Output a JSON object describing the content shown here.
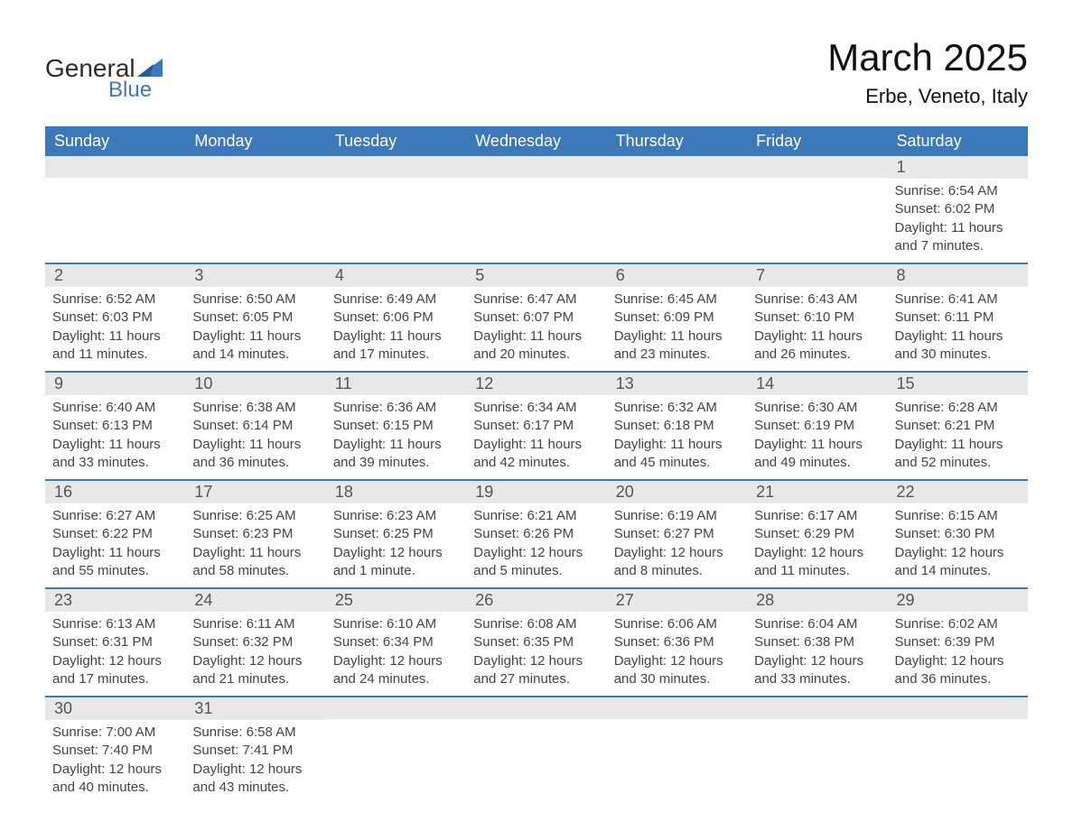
{
  "brand": {
    "word1": "General",
    "word2": "Blue"
  },
  "title": "March 2025",
  "location": "Erbe, Veneto, Italy",
  "colors": {
    "header_bg": "#3d78b8",
    "header_text": "#ffffff",
    "daynum_bg": "#e8e8e8",
    "daynum_text": "#555555",
    "body_text": "#444444",
    "row_divider": "#3d78b8",
    "page_bg": "#ffffff",
    "logo_gray": "#2c2c2c",
    "logo_blue": "#3d78b8"
  },
  "typography": {
    "title_fontsize": 42,
    "location_fontsize": 22,
    "weekday_fontsize": 18,
    "daynum_fontsize": 18,
    "body_fontsize": 15,
    "font_family": "Arial"
  },
  "weekdays": [
    "Sunday",
    "Monday",
    "Tuesday",
    "Wednesday",
    "Thursday",
    "Friday",
    "Saturday"
  ],
  "weeks": [
    [
      null,
      null,
      null,
      null,
      null,
      null,
      {
        "n": "1",
        "sunrise": "Sunrise: 6:54 AM",
        "sunset": "Sunset: 6:02 PM",
        "daylight": "Daylight: 11 hours and 7 minutes."
      }
    ],
    [
      {
        "n": "2",
        "sunrise": "Sunrise: 6:52 AM",
        "sunset": "Sunset: 6:03 PM",
        "daylight": "Daylight: 11 hours and 11 minutes."
      },
      {
        "n": "3",
        "sunrise": "Sunrise: 6:50 AM",
        "sunset": "Sunset: 6:05 PM",
        "daylight": "Daylight: 11 hours and 14 minutes."
      },
      {
        "n": "4",
        "sunrise": "Sunrise: 6:49 AM",
        "sunset": "Sunset: 6:06 PM",
        "daylight": "Daylight: 11 hours and 17 minutes."
      },
      {
        "n": "5",
        "sunrise": "Sunrise: 6:47 AM",
        "sunset": "Sunset: 6:07 PM",
        "daylight": "Daylight: 11 hours and 20 minutes."
      },
      {
        "n": "6",
        "sunrise": "Sunrise: 6:45 AM",
        "sunset": "Sunset: 6:09 PM",
        "daylight": "Daylight: 11 hours and 23 minutes."
      },
      {
        "n": "7",
        "sunrise": "Sunrise: 6:43 AM",
        "sunset": "Sunset: 6:10 PM",
        "daylight": "Daylight: 11 hours and 26 minutes."
      },
      {
        "n": "8",
        "sunrise": "Sunrise: 6:41 AM",
        "sunset": "Sunset: 6:11 PM",
        "daylight": "Daylight: 11 hours and 30 minutes."
      }
    ],
    [
      {
        "n": "9",
        "sunrise": "Sunrise: 6:40 AM",
        "sunset": "Sunset: 6:13 PM",
        "daylight": "Daylight: 11 hours and 33 minutes."
      },
      {
        "n": "10",
        "sunrise": "Sunrise: 6:38 AM",
        "sunset": "Sunset: 6:14 PM",
        "daylight": "Daylight: 11 hours and 36 minutes."
      },
      {
        "n": "11",
        "sunrise": "Sunrise: 6:36 AM",
        "sunset": "Sunset: 6:15 PM",
        "daylight": "Daylight: 11 hours and 39 minutes."
      },
      {
        "n": "12",
        "sunrise": "Sunrise: 6:34 AM",
        "sunset": "Sunset: 6:17 PM",
        "daylight": "Daylight: 11 hours and 42 minutes."
      },
      {
        "n": "13",
        "sunrise": "Sunrise: 6:32 AM",
        "sunset": "Sunset: 6:18 PM",
        "daylight": "Daylight: 11 hours and 45 minutes."
      },
      {
        "n": "14",
        "sunrise": "Sunrise: 6:30 AM",
        "sunset": "Sunset: 6:19 PM",
        "daylight": "Daylight: 11 hours and 49 minutes."
      },
      {
        "n": "15",
        "sunrise": "Sunrise: 6:28 AM",
        "sunset": "Sunset: 6:21 PM",
        "daylight": "Daylight: 11 hours and 52 minutes."
      }
    ],
    [
      {
        "n": "16",
        "sunrise": "Sunrise: 6:27 AM",
        "sunset": "Sunset: 6:22 PM",
        "daylight": "Daylight: 11 hours and 55 minutes."
      },
      {
        "n": "17",
        "sunrise": "Sunrise: 6:25 AM",
        "sunset": "Sunset: 6:23 PM",
        "daylight": "Daylight: 11 hours and 58 minutes."
      },
      {
        "n": "18",
        "sunrise": "Sunrise: 6:23 AM",
        "sunset": "Sunset: 6:25 PM",
        "daylight": "Daylight: 12 hours and 1 minute."
      },
      {
        "n": "19",
        "sunrise": "Sunrise: 6:21 AM",
        "sunset": "Sunset: 6:26 PM",
        "daylight": "Daylight: 12 hours and 5 minutes."
      },
      {
        "n": "20",
        "sunrise": "Sunrise: 6:19 AM",
        "sunset": "Sunset: 6:27 PM",
        "daylight": "Daylight: 12 hours and 8 minutes."
      },
      {
        "n": "21",
        "sunrise": "Sunrise: 6:17 AM",
        "sunset": "Sunset: 6:29 PM",
        "daylight": "Daylight: 12 hours and 11 minutes."
      },
      {
        "n": "22",
        "sunrise": "Sunrise: 6:15 AM",
        "sunset": "Sunset: 6:30 PM",
        "daylight": "Daylight: 12 hours and 14 minutes."
      }
    ],
    [
      {
        "n": "23",
        "sunrise": "Sunrise: 6:13 AM",
        "sunset": "Sunset: 6:31 PM",
        "daylight": "Daylight: 12 hours and 17 minutes."
      },
      {
        "n": "24",
        "sunrise": "Sunrise: 6:11 AM",
        "sunset": "Sunset: 6:32 PM",
        "daylight": "Daylight: 12 hours and 21 minutes."
      },
      {
        "n": "25",
        "sunrise": "Sunrise: 6:10 AM",
        "sunset": "Sunset: 6:34 PM",
        "daylight": "Daylight: 12 hours and 24 minutes."
      },
      {
        "n": "26",
        "sunrise": "Sunrise: 6:08 AM",
        "sunset": "Sunset: 6:35 PM",
        "daylight": "Daylight: 12 hours and 27 minutes."
      },
      {
        "n": "27",
        "sunrise": "Sunrise: 6:06 AM",
        "sunset": "Sunset: 6:36 PM",
        "daylight": "Daylight: 12 hours and 30 minutes."
      },
      {
        "n": "28",
        "sunrise": "Sunrise: 6:04 AM",
        "sunset": "Sunset: 6:38 PM",
        "daylight": "Daylight: 12 hours and 33 minutes."
      },
      {
        "n": "29",
        "sunrise": "Sunrise: 6:02 AM",
        "sunset": "Sunset: 6:39 PM",
        "daylight": "Daylight: 12 hours and 36 minutes."
      }
    ],
    [
      {
        "n": "30",
        "sunrise": "Sunrise: 7:00 AM",
        "sunset": "Sunset: 7:40 PM",
        "daylight": "Daylight: 12 hours and 40 minutes."
      },
      {
        "n": "31",
        "sunrise": "Sunrise: 6:58 AM",
        "sunset": "Sunset: 7:41 PM",
        "daylight": "Daylight: 12 hours and 43 minutes."
      },
      null,
      null,
      null,
      null,
      null
    ]
  ]
}
